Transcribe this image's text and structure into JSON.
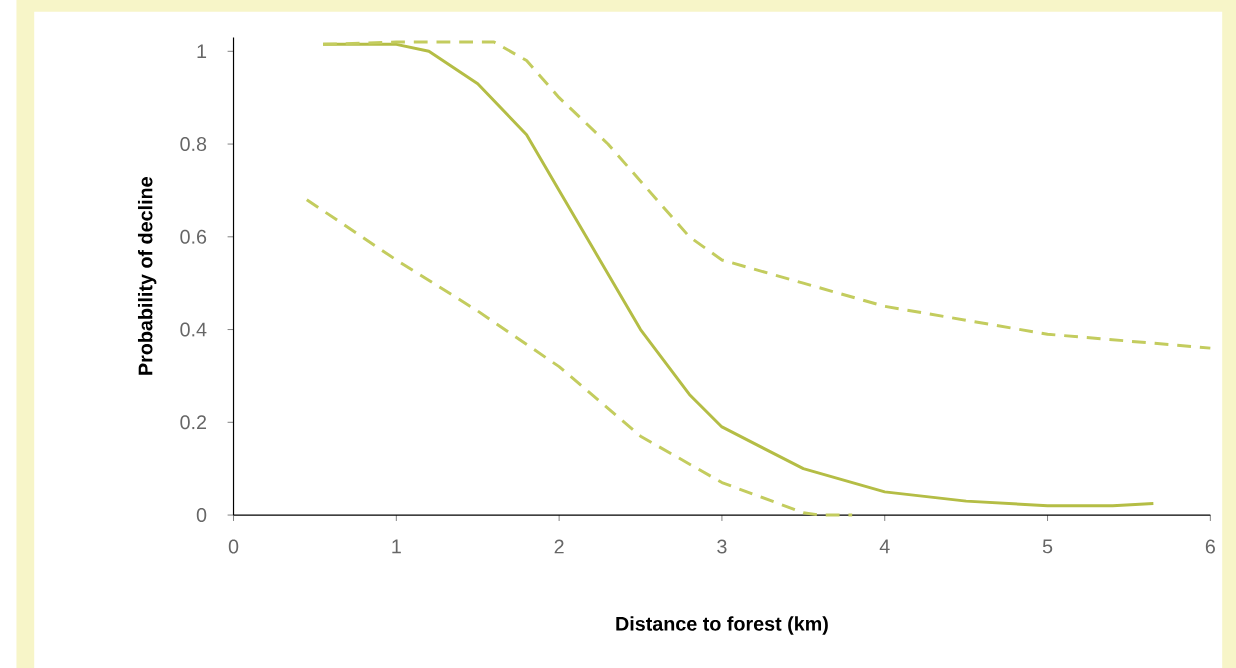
{
  "chart_data": {
    "type": "line",
    "xlabel": "Distance to forest (km)",
    "ylabel": "Probability of decline",
    "xlim": [
      0,
      6
    ],
    "xticks": [
      0,
      1,
      2,
      3,
      4,
      5,
      6
    ],
    "ylim": [
      0,
      1.03
    ],
    "yticks": [
      0,
      0.2,
      0.4,
      0.6,
      0.8,
      1
    ],
    "series": [
      {
        "color": "#b4bd45",
        "line_style": "solid",
        "x": [
          0.55,
          1.0,
          1.2,
          1.5,
          1.8,
          2.0,
          2.2,
          2.5,
          2.8,
          3.0,
          3.5,
          4.0,
          4.5,
          5.0,
          5.4,
          5.65
        ],
        "values": [
          1.015,
          1.015,
          1.0,
          0.93,
          0.82,
          0.7,
          0.58,
          0.4,
          0.26,
          0.19,
          0.1,
          0.05,
          0.03,
          0.02,
          0.02,
          0.025
        ]
      },
      {
        "color": "#c3cc5e",
        "line_style": "dashed",
        "x": [
          0.55,
          1.0,
          1.6,
          1.8,
          2.0,
          2.3,
          2.6,
          2.8,
          3.0,
          3.5,
          4.0,
          4.5,
          5.0,
          5.5,
          6.0
        ],
        "values": [
          1.015,
          1.02,
          1.02,
          0.98,
          0.9,
          0.8,
          0.68,
          0.6,
          0.55,
          0.5,
          0.45,
          0.42,
          0.39,
          0.375,
          0.36
        ]
      },
      {
        "color": "#c3cc5e",
        "line_style": "dashed",
        "x": [
          0.45,
          1.0,
          1.5,
          2.0,
          2.5,
          3.0,
          3.5,
          3.6,
          3.8
        ],
        "values": [
          0.68,
          0.55,
          0.44,
          0.32,
          0.17,
          0.07,
          0.005,
          0.0,
          0.0
        ]
      }
    ]
  }
}
